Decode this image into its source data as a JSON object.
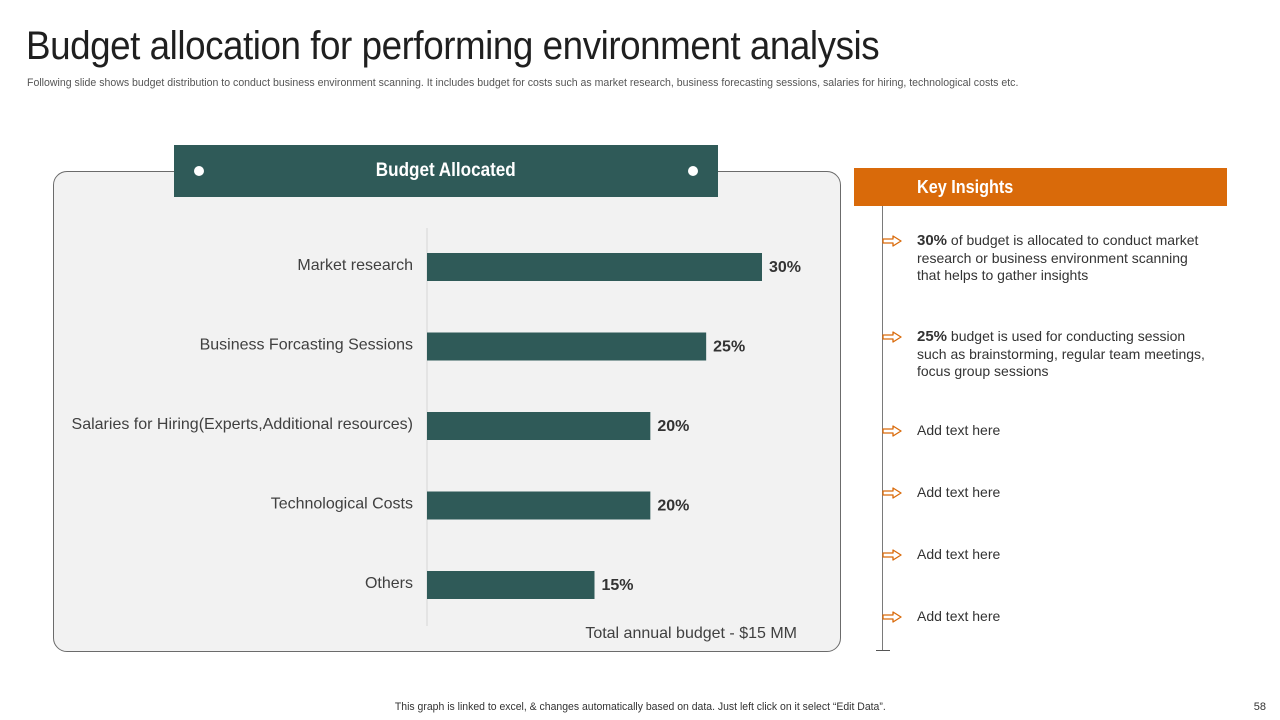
{
  "slide": {
    "title": "Budget allocation for performing environment analysis",
    "subtitle": "Following slide shows budget distribution to conduct business environment scanning. It includes budget for costs such as market research, business forecasting sessions, salaries for hiring, technological costs etc.",
    "footnote": "This graph is linked to excel,  & changes automatically based on data. Just left click on it select “Edit Data”.",
    "page_number": "58"
  },
  "colors": {
    "bar": "#2f5a58",
    "accent": "#d96a0a",
    "panel_bg": "#f2f2f2"
  },
  "chart_data": {
    "type": "bar",
    "orientation": "horizontal",
    "title": "Budget Allocated",
    "categories": [
      "Market research",
      "Business Forcasting Sessions",
      "Salaries for Hiring(Experts,Additional resources)",
      "Technological Costs",
      "Others"
    ],
    "values": [
      30,
      25,
      20,
      20,
      15
    ],
    "value_labels": [
      "30%",
      "25%",
      "20%",
      "20%",
      "15%"
    ],
    "unit": "%",
    "xlim": [
      0,
      100
    ],
    "grid": false,
    "annotation": "Total annual budget - $15 MM"
  },
  "insights": {
    "header": "Key Insights",
    "icon": "arrow-right-outline-icon",
    "items": [
      {
        "bold": "30%",
        "text": " of budget is allocated to conduct market research or business environment scanning that helps to gather insights"
      },
      {
        "bold": "25%",
        "text": " budget is used for conducting session such as brainstorming, regular team meetings, focus group sessions"
      },
      {
        "bold": "",
        "text": "Add text here"
      },
      {
        "bold": "",
        "text": "Add text here"
      },
      {
        "bold": "",
        "text": "Add text here"
      },
      {
        "bold": "",
        "text": "Add text here"
      }
    ]
  }
}
